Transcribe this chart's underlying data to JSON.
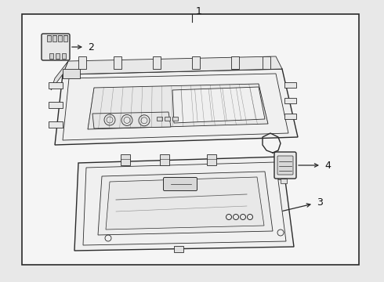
{
  "bg_color": "#e8e8e8",
  "box_bg": "#f5f5f5",
  "line_color": "#2a2a2a",
  "label_color": "#111111",
  "fig_width": 4.9,
  "fig_height": 3.6,
  "dpi": 100
}
